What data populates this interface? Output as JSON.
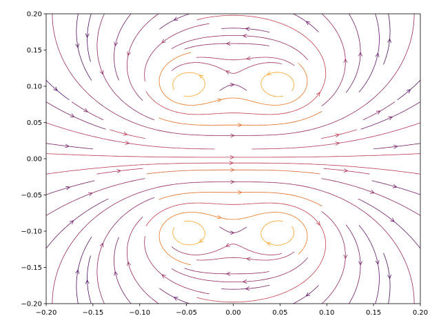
{
  "chart_data": {
    "type": "streamplot",
    "vortices": [
      {
        "x": -0.05,
        "y": 0.1,
        "strength": 1
      },
      {
        "x": 0.05,
        "y": 0.1,
        "strength": 1
      },
      {
        "x": -0.05,
        "y": -0.1,
        "strength": -1
      },
      {
        "x": 0.05,
        "y": -0.1,
        "strength": -1
      }
    ],
    "colormap": "inferno",
    "density": 30,
    "xlim": [
      -0.2,
      0.2
    ],
    "ylim": [
      -0.2,
      0.2
    ],
    "xticks": [
      {
        "value": -0.2,
        "label": "−0.20"
      },
      {
        "value": -0.15,
        "label": "−0.15"
      },
      {
        "value": -0.1,
        "label": "−0.10"
      },
      {
        "value": -0.05,
        "label": "−0.05"
      },
      {
        "value": 0,
        "label": "0.00"
      },
      {
        "value": 0.05,
        "label": "0.05"
      },
      {
        "value": 0.1,
        "label": "0.10"
      },
      {
        "value": 0.15,
        "label": "0.15"
      },
      {
        "value": 0.2,
        "label": "0.20"
      }
    ],
    "yticks": [
      {
        "value": -0.2,
        "label": "−0.20"
      },
      {
        "value": -0.15,
        "label": "−0.15"
      },
      {
        "value": -0.1,
        "label": "−0.10"
      },
      {
        "value": -0.05,
        "label": "−0.05"
      },
      {
        "value": 0,
        "label": "0.00"
      },
      {
        "value": 0.05,
        "label": "0.05"
      },
      {
        "value": 0.1,
        "label": "0.10"
      },
      {
        "value": 0.15,
        "label": "0.15"
      },
      {
        "value": 0.2,
        "label": "0.20"
      }
    ]
  }
}
